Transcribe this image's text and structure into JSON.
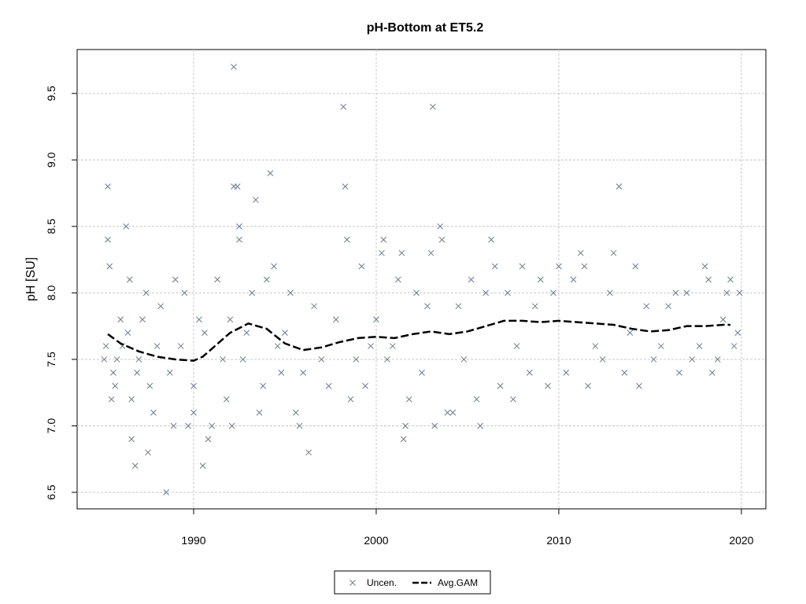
{
  "chart_data": {
    "type": "scatter",
    "title": "pH-Bottom at ET5.2",
    "y_label": "pH [SU]",
    "xlim": [
      1983.62,
      2021.34
    ],
    "ylim": [
      6.376,
      9.83
    ],
    "xticks": [
      1990,
      2000,
      2010,
      2020
    ],
    "yticks": [
      6.5,
      {
        "value": 7,
        "label": "7.0"
      },
      7.5,
      {
        "value": 8,
        "label": "8.0"
      },
      8.5,
      {
        "value": 9,
        "label": "9.0"
      },
      9.5
    ],
    "grid": true,
    "legend": "bottom",
    "series": [
      {
        "name": "Uncen.",
        "color": "#6b7b8c",
        "marker": "x",
        "x": [
          1985.1,
          1985.2,
          1985.3,
          1985.3,
          1985.4,
          1985.5,
          1985.6,
          1985.7,
          1985.8,
          1986.0,
          1986.1,
          1986.3,
          1986.4,
          1986.5,
          1986.6,
          1986.6,
          1986.8,
          1986.9,
          1987.0,
          1987.2,
          1987.4,
          1987.5,
          1987.6,
          1987.8,
          1988.0,
          1988.2,
          1988.5,
          1988.7,
          1988.9,
          1989.0,
          1989.3,
          1989.5,
          1989.7,
          1990.0,
          1990.0,
          1990.3,
          1990.5,
          1990.6,
          1990.8,
          1991.0,
          1991.3,
          1991.6,
          1991.8,
          1992.0,
          1992.1,
          1992.2,
          1992.2,
          1992.4,
          1992.5,
          1992.5,
          1992.7,
          1992.9,
          1993.2,
          1993.4,
          1993.6,
          1993.8,
          1994.0,
          1994.2,
          1994.4,
          1994.6,
          1994.8,
          1995.0,
          1995.3,
          1995.6,
          1995.8,
          1996.0,
          1996.3,
          1996.6,
          1997.0,
          1997.4,
          1997.8,
          1998.2,
          1998.3,
          1998.4,
          1998.6,
          1998.9,
          1999.2,
          1999.4,
          1999.7,
          2000.0,
          2000.3,
          2000.4,
          2000.6,
          2000.9,
          2001.2,
          2001.4,
          2001.5,
          2001.6,
          2001.8,
          2002.2,
          2002.5,
          2002.8,
          2003.0,
          2003.1,
          2003.2,
          2003.5,
          2003.6,
          2003.9,
          2004.2,
          2004.5,
          2004.8,
          2005.2,
          2005.5,
          2005.7,
          2006.0,
          2006.3,
          2006.5,
          2006.8,
          2007.2,
          2007.5,
          2007.7,
          2008.0,
          2008.4,
          2008.7,
          2009.0,
          2009.4,
          2009.7,
          2010.0,
          2010.4,
          2010.8,
          2011.2,
          2011.4,
          2011.6,
          2012.0,
          2012.4,
          2012.8,
          2013.0,
          2013.3,
          2013.6,
          2013.9,
          2014.2,
          2014.4,
          2014.8,
          2015.2,
          2015.6,
          2016.0,
          2016.4,
          2016.6,
          2017.0,
          2017.3,
          2017.7,
          2018.0,
          2018.2,
          2018.4,
          2018.7,
          2019.0,
          2019.2,
          2019.4,
          2019.6,
          2019.8,
          2019.9
        ],
        "values": [
          7.5,
          7.6,
          8.8,
          8.4,
          8.2,
          7.2,
          7.4,
          7.3,
          7.5,
          7.8,
          7.6,
          8.5,
          7.7,
          8.1,
          7.2,
          6.9,
          6.7,
          7.4,
          7.5,
          7.8,
          8.0,
          6.8,
          7.3,
          7.1,
          7.6,
          7.9,
          6.5,
          7.4,
          7.0,
          8.1,
          7.6,
          8.0,
          7.0,
          7.3,
          7.1,
          7.8,
          6.7,
          7.7,
          6.9,
          7.0,
          8.1,
          7.5,
          7.2,
          7.8,
          7.0,
          8.8,
          9.7,
          8.8,
          8.5,
          8.4,
          7.5,
          7.7,
          8.0,
          8.7,
          7.1,
          7.3,
          8.1,
          8.9,
          8.2,
          7.6,
          7.4,
          7.7,
          8.0,
          7.1,
          7.0,
          7.4,
          6.8,
          7.9,
          7.5,
          7.3,
          7.8,
          9.4,
          8.8,
          8.4,
          7.2,
          7.5,
          8.2,
          7.3,
          7.6,
          7.8,
          8.3,
          8.4,
          7.5,
          7.6,
          8.1,
          8.3,
          6.9,
          7.0,
          7.2,
          8.0,
          7.4,
          7.9,
          8.3,
          9.4,
          7.0,
          8.5,
          8.4,
          7.1,
          7.1,
          7.9,
          7.5,
          8.1,
          7.2,
          7.0,
          8.0,
          8.4,
          8.2,
          7.3,
          8.0,
          7.2,
          7.6,
          8.2,
          7.4,
          7.9,
          8.1,
          7.3,
          8.0,
          8.2,
          7.4,
          8.1,
          8.3,
          8.2,
          7.3,
          7.6,
          7.5,
          8.0,
          8.3,
          8.8,
          7.4,
          7.7,
          8.2,
          7.3,
          7.9,
          7.5,
          7.6,
          7.9,
          8.0,
          7.4,
          8.0,
          7.5,
          7.6,
          8.2,
          8.1,
          7.4,
          7.5,
          7.8,
          8.0,
          8.1,
          7.6,
          7.7,
          8.0
        ]
      },
      {
        "name": "Avg.GAM",
        "color": "#000000",
        "line_style": "dashed",
        "x": [
          1985.3,
          1986,
          1987,
          1988,
          1989,
          1990,
          1990.5,
          1991,
          1992,
          1993,
          1994,
          1995,
          1996,
          1997,
          1998,
          1999,
          2000,
          2001,
          2002,
          2003,
          2004,
          2005,
          2006,
          2007,
          2008,
          2009,
          2010,
          2011,
          2012,
          2013,
          2014,
          2015,
          2016,
          2017,
          2018,
          2019,
          2019.4
        ],
        "values": [
          7.69,
          7.62,
          7.56,
          7.52,
          7.5,
          7.49,
          7.52,
          7.58,
          7.7,
          7.77,
          7.73,
          7.62,
          7.57,
          7.59,
          7.63,
          7.66,
          7.67,
          7.66,
          7.69,
          7.71,
          7.69,
          7.71,
          7.75,
          7.79,
          7.79,
          7.78,
          7.79,
          7.78,
          7.77,
          7.76,
          7.73,
          7.71,
          7.72,
          7.75,
          7.75,
          7.76,
          7.76
        ]
      }
    ]
  }
}
